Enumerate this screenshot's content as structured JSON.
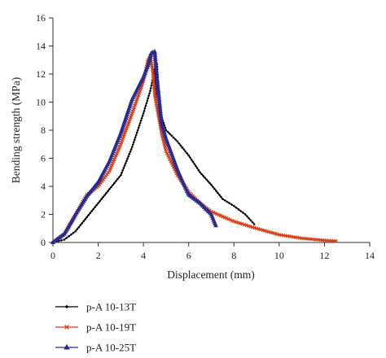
{
  "chart_data": {
    "type": "line",
    "title": "",
    "xlabel": "Displacement (mm)",
    "ylabel": "Bending strength (MPa)",
    "xlim": [
      0,
      14
    ],
    "ylim": [
      0,
      16
    ],
    "xticks": [
      0,
      2,
      4,
      6,
      8,
      10,
      12,
      14
    ],
    "yticks": [
      0,
      2,
      4,
      6,
      8,
      10,
      12,
      14,
      16
    ],
    "grid": false,
    "legend_position": "bottom-left, below plot",
    "series": [
      {
        "name": "p-A 10-13T",
        "color": "#000000",
        "marker": "diamond",
        "points": [
          [
            0,
            0
          ],
          [
            0.5,
            0.2
          ],
          [
            1,
            0.8
          ],
          [
            1.5,
            1.8
          ],
          [
            2,
            2.8
          ],
          [
            2.5,
            3.8
          ],
          [
            3,
            4.8
          ],
          [
            3.5,
            6.8
          ],
          [
            4,
            9.2
          ],
          [
            4.3,
            10.8
          ],
          [
            4.5,
            12.3
          ],
          [
            4.55,
            10.2
          ],
          [
            4.6,
            12.7
          ],
          [
            4.7,
            9.4
          ],
          [
            5,
            8
          ],
          [
            5.5,
            7.2
          ],
          [
            6,
            6.2
          ],
          [
            6.5,
            5
          ],
          [
            7,
            4.1
          ],
          [
            7.5,
            3.1
          ],
          [
            8,
            2.6
          ],
          [
            8.5,
            2
          ],
          [
            8.9,
            1.3
          ]
        ]
      },
      {
        "name": "p-A 10-19T",
        "color": "#d9421b",
        "marker": "x",
        "points": [
          [
            0,
            0
          ],
          [
            0.5,
            0.6
          ],
          [
            1,
            2
          ],
          [
            1.5,
            3.4
          ],
          [
            2,
            4
          ],
          [
            2.5,
            5.1
          ],
          [
            3,
            7
          ],
          [
            3.5,
            9.2
          ],
          [
            4,
            11.5
          ],
          [
            4.2,
            13
          ],
          [
            4.3,
            13.3
          ],
          [
            4.4,
            12.3
          ],
          [
            4.5,
            10.5
          ],
          [
            4.8,
            7.8
          ],
          [
            5,
            6.5
          ],
          [
            5.5,
            4.8
          ],
          [
            6,
            3.6
          ],
          [
            6.5,
            2.8
          ],
          [
            7,
            2.2
          ],
          [
            8,
            1.5
          ],
          [
            9,
            1
          ],
          [
            10,
            0.55
          ],
          [
            11,
            0.3
          ],
          [
            12,
            0.15
          ],
          [
            12.5,
            0.1
          ]
        ]
      },
      {
        "name": "p-A 10-25T",
        "color": "#2b2a8f",
        "marker": "triangle",
        "points": [
          [
            0,
            0
          ],
          [
            0.5,
            0.6
          ],
          [
            1,
            2
          ],
          [
            1.5,
            3.3
          ],
          [
            2,
            4.3
          ],
          [
            2.5,
            5.8
          ],
          [
            3,
            7.8
          ],
          [
            3.5,
            10.2
          ],
          [
            4,
            11.8
          ],
          [
            4.2,
            12.6
          ],
          [
            4.35,
            13.5
          ],
          [
            4.5,
            13.6
          ],
          [
            4.55,
            12.5
          ],
          [
            4.8,
            8.5
          ],
          [
            5,
            7.4
          ],
          [
            5.5,
            5.2
          ],
          [
            6,
            3.4
          ],
          [
            6.5,
            2.8
          ],
          [
            7,
            2
          ],
          [
            7.2,
            1.2
          ]
        ]
      }
    ]
  }
}
